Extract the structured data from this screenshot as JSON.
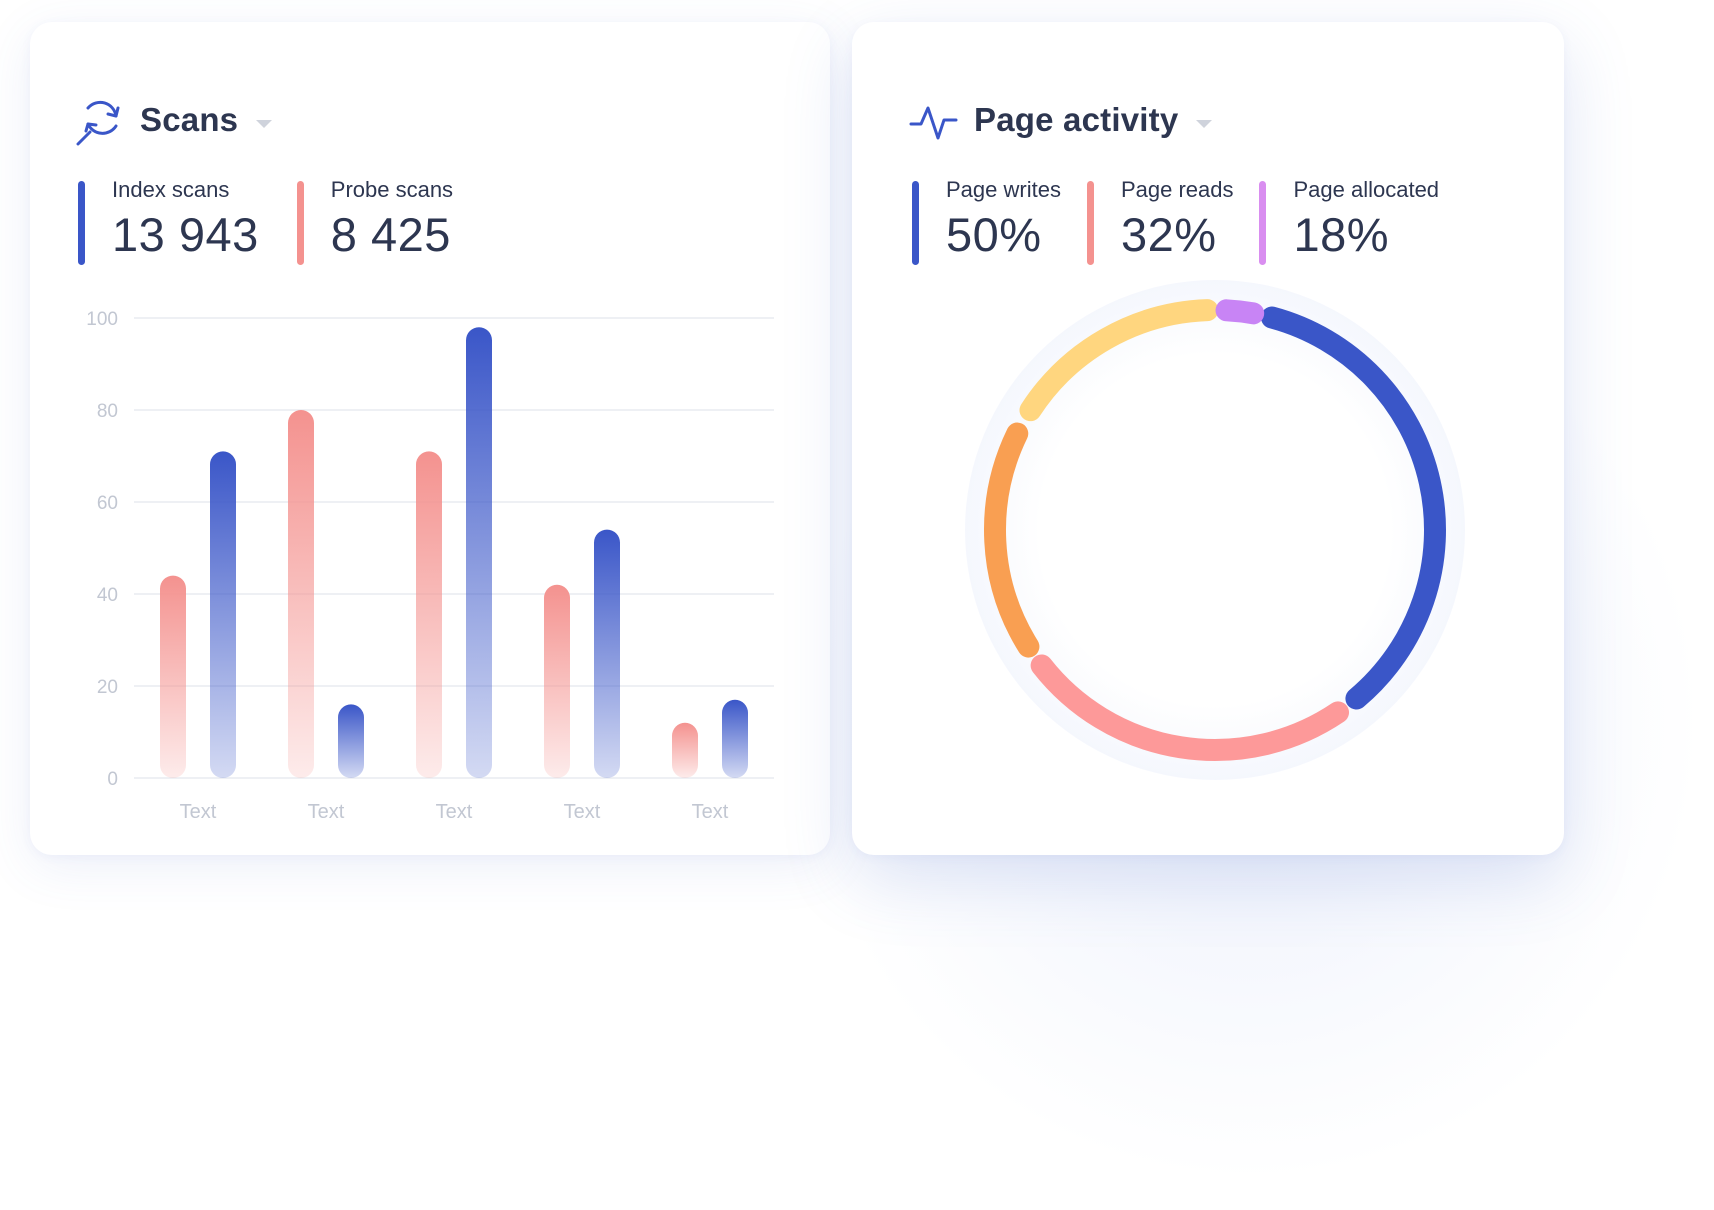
{
  "scans": {
    "title": "Scans",
    "icon": "refresh-search-icon",
    "metrics": [
      {
        "label": "Index scans",
        "value": "13 943",
        "color": "#3a56c8"
      },
      {
        "label": "Probe scans",
        "value": "8 425",
        "color": "#f4928f"
      }
    ]
  },
  "activity": {
    "title": "Page activity",
    "icon": "pulse-icon",
    "metrics": [
      {
        "label": "Page writes",
        "value": "50%",
        "color": "#3a56c8"
      },
      {
        "label": "Page reads",
        "value": "32%",
        "color": "#f4928f"
      },
      {
        "label": "Page allocated",
        "value": "18%",
        "color": "#d98ef0"
      }
    ]
  },
  "chart_data": [
    {
      "type": "bar",
      "categories": [
        "Text",
        "Text",
        "Text",
        "Text",
        "Text"
      ],
      "series": [
        {
          "name": "Probe scans",
          "values": [
            44,
            80,
            71,
            42,
            12
          ],
          "color": "#f4928f"
        },
        {
          "name": "Index scans",
          "values": [
            71,
            16,
            98,
            54,
            17
          ],
          "color": "#3a56c8"
        }
      ],
      "ylim": [
        0,
        100
      ],
      "yticks": [
        0,
        20,
        40,
        60,
        80,
        100
      ],
      "grid": true
    },
    {
      "type": "pie",
      "style": "donut",
      "segments": [
        {
          "color": "#3a56c8",
          "start_deg": 15,
          "end_deg": 140
        },
        {
          "color": "#fd9999",
          "start_deg": 146,
          "end_deg": 232
        },
        {
          "color": "#f99f52",
          "start_deg": 238,
          "end_deg": 296
        },
        {
          "color": "#ffd67f",
          "start_deg": 303,
          "end_deg": 358
        },
        {
          "color": "#c884f5",
          "start_deg": 3,
          "end_deg": 10
        }
      ]
    }
  ]
}
